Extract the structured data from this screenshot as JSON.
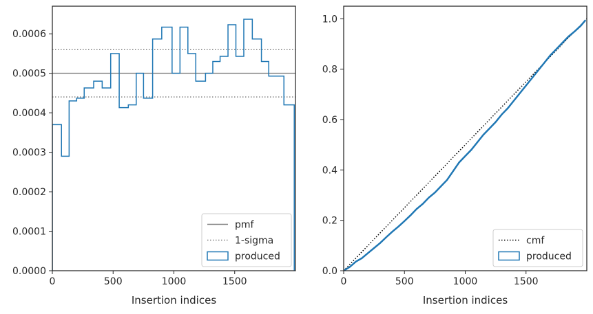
{
  "chart_data": [
    {
      "type": "step",
      "xlabel": "Insertion indices",
      "ylabel": "",
      "xlim": [
        0,
        2000
      ],
      "ylim": [
        0,
        0.00067
      ],
      "xticks": [
        0,
        500,
        1000,
        1500
      ],
      "xtick_labels": [
        "0",
        "500",
        "1000",
        "1500"
      ],
      "yticks": [
        0,
        0.0001,
        0.0002,
        0.0003,
        0.0004,
        0.0005,
        0.0006
      ],
      "ytick_labels": [
        "0.0000",
        "0.0001",
        "0.0002",
        "0.0003",
        "0.0004",
        "0.0005",
        "0.0006"
      ],
      "grid": false,
      "legend_position": "lower-right",
      "series": [
        {
          "name": "pmf",
          "style": "solid",
          "color": "#808080",
          "y": 0.0005
        },
        {
          "name": "1-sigma",
          "style": "dotted",
          "color": "#808080",
          "y_values": [
            0.00044,
            0.00056
          ]
        },
        {
          "name": "produced",
          "style": "step",
          "color": "#1f77b4",
          "bin_edges": [
            0,
            75,
            138,
            200,
            262,
            340,
            410,
            480,
            550,
            625,
            690,
            750,
            825,
            900,
            985,
            1050,
            1115,
            1180,
            1260,
            1320,
            1380,
            1445,
            1510,
            1575,
            1645,
            1720,
            1780,
            1830,
            1905,
            1990
          ],
          "values": [
            0.00037,
            0.00029,
            0.00043,
            0.000437,
            0.000463,
            0.00048,
            0.000463,
            0.00055,
            0.000413,
            0.00042,
            0.0005,
            0.000437,
            0.000587,
            0.000617,
            0.0005,
            0.000617,
            0.00055,
            0.00048,
            0.0005,
            0.00053,
            0.000543,
            0.000623,
            0.000543,
            0.000637,
            0.000587,
            0.00053,
            0.000493,
            0.000493,
            0.00042
          ]
        }
      ]
    },
    {
      "type": "line",
      "xlabel": "Insertion indices",
      "ylabel": "",
      "xlim": [
        0,
        2000
      ],
      "ylim": [
        0,
        1.05
      ],
      "xticks": [
        0,
        500,
        1000,
        1500
      ],
      "xtick_labels": [
        "0",
        "500",
        "1000",
        "1500"
      ],
      "yticks": [
        0,
        0.2,
        0.4,
        0.6,
        0.8,
        1.0
      ],
      "ytick_labels": [
        "0.0",
        "0.2",
        "0.4",
        "0.6",
        "0.8",
        "1.0"
      ],
      "grid": false,
      "legend_position": "lower-right",
      "series": [
        {
          "name": "cmf",
          "style": "dotted",
          "color": "#000000",
          "x": [
            0,
            2000
          ],
          "y": [
            0,
            1.0
          ]
        },
        {
          "name": "produced",
          "style": "step",
          "color": "#1f77b4",
          "x": [
            0,
            50,
            100,
            150,
            200,
            250,
            300,
            350,
            400,
            450,
            500,
            550,
            600,
            650,
            700,
            750,
            800,
            850,
            900,
            950,
            1000,
            1050,
            1100,
            1150,
            1200,
            1250,
            1300,
            1350,
            1400,
            1450,
            1500,
            1550,
            1600,
            1650,
            1700,
            1750,
            1800,
            1850,
            1900,
            1950,
            1990
          ],
          "y": [
            0,
            0.015,
            0.036,
            0.05,
            0.07,
            0.09,
            0.11,
            0.133,
            0.155,
            0.175,
            0.197,
            0.22,
            0.245,
            0.265,
            0.29,
            0.31,
            0.335,
            0.36,
            0.395,
            0.43,
            0.455,
            0.48,
            0.51,
            0.54,
            0.565,
            0.59,
            0.62,
            0.645,
            0.675,
            0.705,
            0.735,
            0.765,
            0.795,
            0.825,
            0.855,
            0.88,
            0.905,
            0.93,
            0.95,
            0.972,
            0.995
          ]
        }
      ]
    }
  ]
}
